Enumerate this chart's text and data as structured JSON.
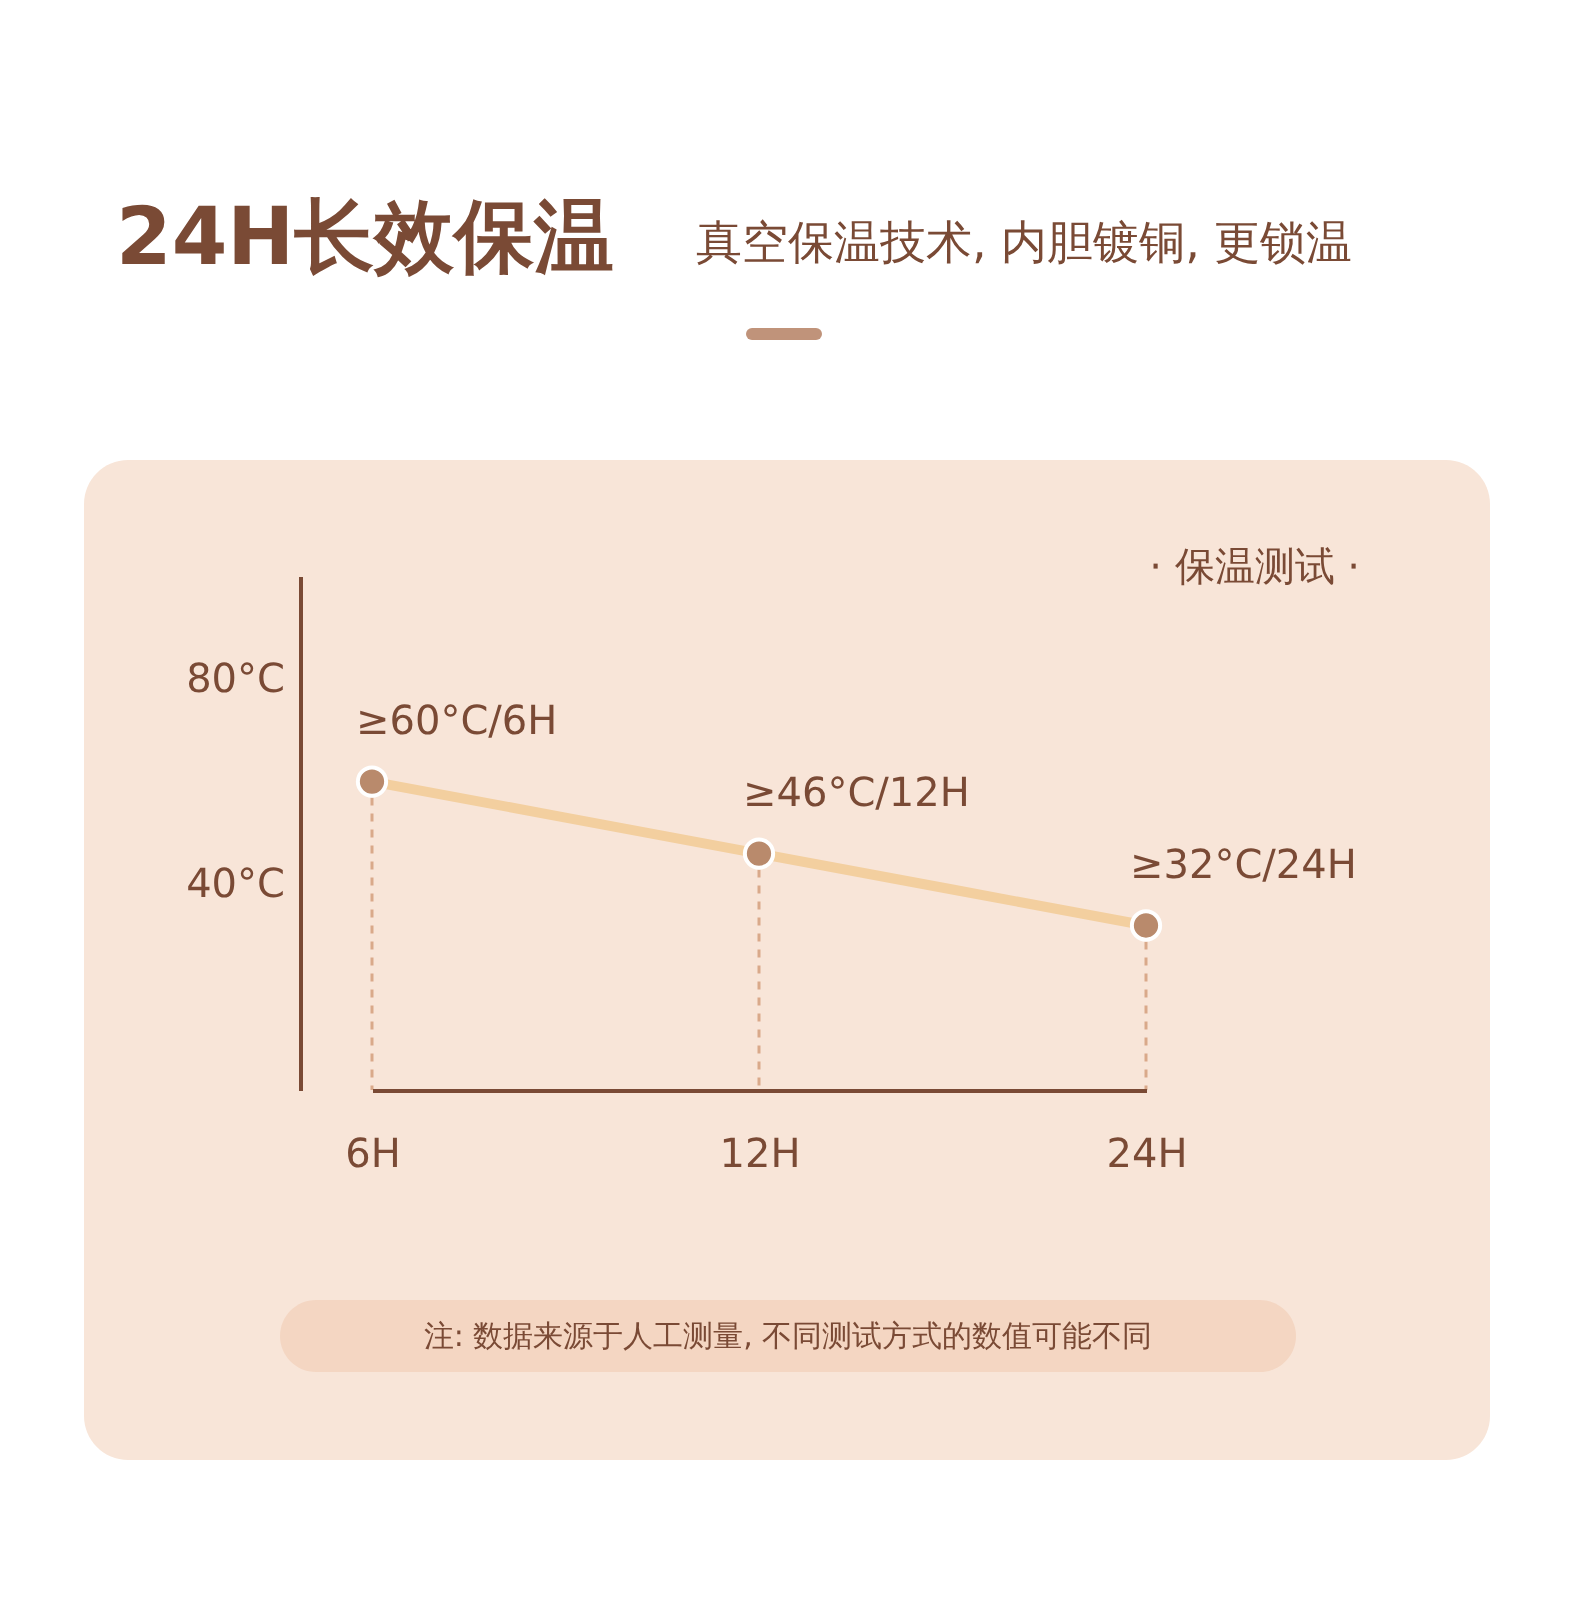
{
  "chart_data": {
    "type": "line",
    "title": "24H长效保温",
    "subtitle": "真空保温技术, 内胆镀铜, 更锁温",
    "categories": [
      "6H",
      "12H",
      "24H"
    ],
    "series": [
      {
        "color": "#f3cf9f",
        "values": [
          60,
          46,
          32
        ]
      }
    ],
    "value_labels": [
      "≥60°C/6H",
      "≥46°C/12H",
      "≥32°C/24H"
    ],
    "ylim": [
      0,
      100
    ],
    "yticks": [
      {
        "value": 40,
        "label": "40°C"
      },
      {
        "value": 80,
        "label": "80°C"
      }
    ],
    "ref_lines": [
      {
        "axis": "x",
        "value": "6H",
        "color": "#d9a98a",
        "line_style": "dashed"
      },
      {
        "axis": "x",
        "value": "12H",
        "color": "#d9a98a",
        "line_style": "dashed"
      },
      {
        "axis": "x",
        "value": "24H",
        "color": "#d9a98a",
        "line_style": "dashed"
      }
    ],
    "marker": "circle",
    "annotations": [
      "· 保温测试 ·",
      "注: 数据来源于人工测量, 不同测试方式的数值可能不同"
    ]
  }
}
